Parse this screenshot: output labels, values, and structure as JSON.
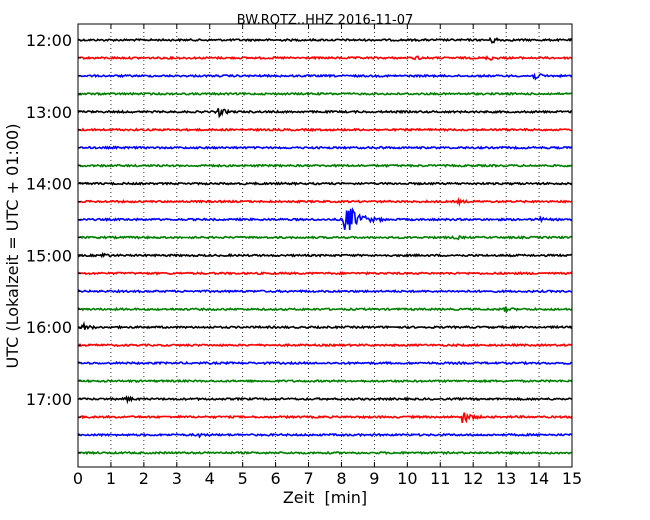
{
  "chart_data": {
    "type": "line",
    "title": "BW.ROTZ..HHZ 2016-11-07",
    "xlabel": "Zeit  [min]",
    "ylabel": "UTC (Lokalzeit = UTC + 01:00)",
    "xlim": [
      0,
      15
    ],
    "x_ticks": [
      "0",
      "1",
      "2",
      "3",
      "4",
      "5",
      "6",
      "7",
      "8",
      "9",
      "10",
      "11",
      "12",
      "13",
      "14",
      "15"
    ],
    "y_ticks": [
      "12:00",
      "13:00",
      "14:00",
      "15:00",
      "16:00",
      "17:00"
    ],
    "grid": "vertical-dotted",
    "trace_colors": [
      "#000000",
      "#ff0000",
      "#0000ff",
      "#008000"
    ],
    "traces": [
      {
        "start": "12:00",
        "events": [
          {
            "t": 12.6,
            "amp": 3
          }
        ]
      },
      {
        "start": "12:15",
        "events": [
          {
            "t": 10.3,
            "amp": 1.5
          },
          {
            "t": 12.5,
            "amp": 2
          }
        ]
      },
      {
        "start": "12:30",
        "events": [
          {
            "t": 13.9,
            "amp": 3
          }
        ]
      },
      {
        "start": "12:45",
        "events": []
      },
      {
        "start": "13:00",
        "events": [
          {
            "t": 4.3,
            "amp": 4
          }
        ]
      },
      {
        "start": "13:15",
        "events": []
      },
      {
        "start": "13:30",
        "events": [
          {
            "t": 9.1,
            "amp": 1.2
          }
        ]
      },
      {
        "start": "13:45",
        "events": []
      },
      {
        "start": "14:00",
        "events": []
      },
      {
        "start": "14:15",
        "events": [
          {
            "t": 11.6,
            "amp": 1.5
          }
        ]
      },
      {
        "start": "14:30",
        "events": [
          {
            "t": 8.15,
            "amp": 16
          },
          {
            "t": 14.0,
            "amp": 2
          }
        ]
      },
      {
        "start": "14:45",
        "events": [
          {
            "t": 11.5,
            "amp": 1.5
          }
        ]
      },
      {
        "start": "15:00",
        "events": [
          {
            "t": 0.8,
            "amp": 2
          }
        ]
      },
      {
        "start": "15:15",
        "events": []
      },
      {
        "start": "15:30",
        "events": []
      },
      {
        "start": "15:45",
        "events": [
          {
            "t": 13.0,
            "amp": 2
          }
        ]
      },
      {
        "start": "16:00",
        "events": [
          {
            "t": 0.2,
            "amp": 3
          }
        ]
      },
      {
        "start": "16:15",
        "events": []
      },
      {
        "start": "16:30",
        "events": []
      },
      {
        "start": "16:45",
        "events": []
      },
      {
        "start": "17:00",
        "events": [
          {
            "t": 1.5,
            "amp": 2
          }
        ]
      },
      {
        "start": "17:15",
        "events": [
          {
            "t": 11.7,
            "amp": 6
          }
        ]
      },
      {
        "start": "17:30",
        "events": [
          {
            "t": 3.7,
            "amp": 1.5
          }
        ]
      },
      {
        "start": "17:45",
        "events": []
      }
    ]
  }
}
